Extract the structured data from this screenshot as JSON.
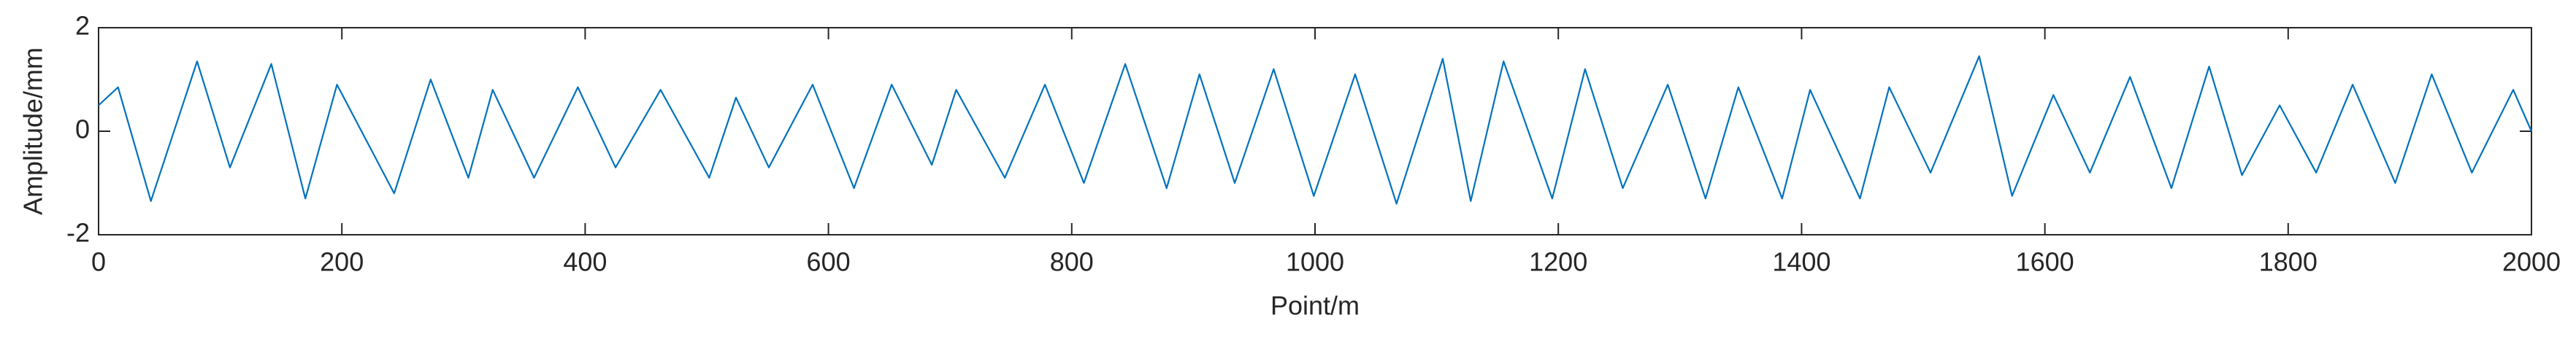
{
  "chart_data": {
    "type": "line",
    "x_label": "Point/m",
    "y_label": "Amplitude/mm",
    "x": [
      0,
      16,
      43,
      81,
      108,
      142,
      170,
      196,
      243,
      273,
      304,
      324,
      358,
      394,
      425,
      462,
      502,
      524,
      551,
      587,
      621,
      652,
      685,
      705,
      745,
      778,
      810,
      844,
      878,
      905,
      934,
      966,
      999,
      1033,
      1067,
      1105,
      1128,
      1155,
      1195,
      1222,
      1253,
      1290,
      1321,
      1348,
      1384,
      1407,
      1448,
      1472,
      1506,
      1546,
      1573,
      1607,
      1637,
      1670,
      1704,
      1735,
      1762,
      1793,
      1823,
      1853,
      1888,
      1918,
      1951,
      1985,
      2000
    ],
    "series": [
      {
        "color": "#0072bd",
        "values": [
          0.5,
          0.85,
          -1.35,
          1.35,
          -0.7,
          1.3,
          -1.3,
          0.9,
          -1.2,
          1.0,
          -0.9,
          0.8,
          -0.9,
          0.85,
          -0.7,
          0.8,
          -0.9,
          0.65,
          -0.7,
          0.9,
          -1.1,
          0.9,
          -0.65,
          0.8,
          -0.9,
          0.9,
          -1.0,
          1.3,
          -1.1,
          1.1,
          -1.0,
          1.2,
          -1.25,
          1.1,
          -1.4,
          1.4,
          -1.35,
          1.35,
          -1.3,
          1.2,
          -1.1,
          0.9,
          -1.3,
          0.85,
          -1.3,
          0.8,
          -1.3,
          0.85,
          -0.8,
          1.45,
          -1.25,
          0.7,
          -0.8,
          1.05,
          -1.1,
          1.25,
          -0.85,
          0.5,
          -0.8,
          0.9,
          -1.0,
          1.1,
          -0.8,
          0.8,
          0.0
        ]
      }
    ],
    "xlim": [
      0,
      2000
    ],
    "xticks": [
      0,
      200,
      400,
      600,
      800,
      1000,
      1200,
      1400,
      1600,
      1800,
      2000
    ],
    "ylim": [
      -2,
      2
    ],
    "yticks": [
      -2,
      0,
      2
    ]
  }
}
